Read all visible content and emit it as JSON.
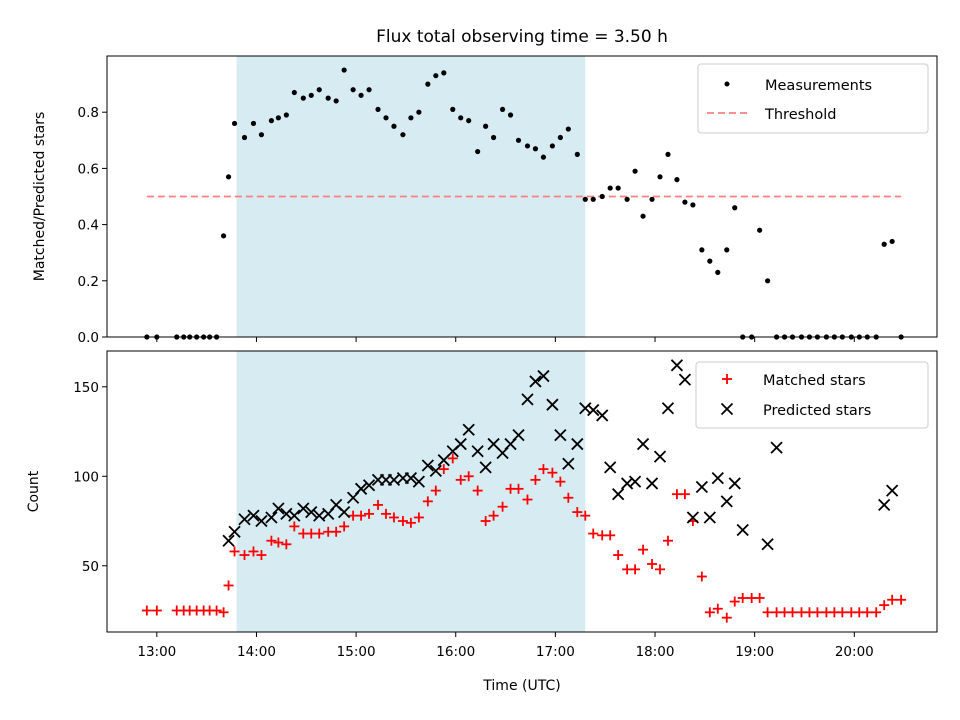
{
  "chart_data": [
    {
      "type": "scatter",
      "title": "Flux total observing time = 3.50 h",
      "xlabel": "",
      "ylabel": "Matched/Predicted stars",
      "x_unit": "hours (UTC)",
      "xlim": [
        12.5,
        20.83
      ],
      "ylim": [
        0,
        1.0
      ],
      "yticks": [
        0.0,
        0.2,
        0.4,
        0.6,
        0.8
      ],
      "ytick_labels": [
        "0.0",
        "0.2",
        "0.4",
        "0.6",
        "0.8"
      ],
      "shaded_region": {
        "x_start": 13.8,
        "x_end": 17.3,
        "color": "#add8e6"
      },
      "legend_position": "upper-right",
      "threshold": {
        "name": "Threshold",
        "value": 0.5,
        "x_start": 12.9,
        "x_end": 20.47,
        "color": "#ff7f7f"
      },
      "series": [
        {
          "name": "Measurements",
          "marker": "dot",
          "color": "#000000",
          "x": [
            12.9,
            13.0,
            13.2,
            13.27,
            13.33,
            13.4,
            13.47,
            13.53,
            13.6,
            13.67,
            13.72,
            13.78,
            13.88,
            13.97,
            14.05,
            14.15,
            14.22,
            14.3,
            14.38,
            14.47,
            14.55,
            14.63,
            14.72,
            14.8,
            14.88,
            14.97,
            15.05,
            15.13,
            15.22,
            15.3,
            15.38,
            15.47,
            15.55,
            15.63,
            15.72,
            15.8,
            15.88,
            15.97,
            16.05,
            16.13,
            16.22,
            16.3,
            16.38,
            16.47,
            16.55,
            16.63,
            16.72,
            16.8,
            16.88,
            16.97,
            17.05,
            17.13,
            17.22,
            17.3,
            17.38,
            17.47,
            17.55,
            17.63,
            17.72,
            17.8,
            17.88,
            17.97,
            18.05,
            18.13,
            18.22,
            18.3,
            18.38,
            18.47,
            18.55,
            18.63,
            18.72,
            18.8,
            18.88,
            18.97,
            19.05,
            19.13,
            19.22,
            19.3,
            19.38,
            19.47,
            19.55,
            19.63,
            19.72,
            19.8,
            19.88,
            19.97,
            20.05,
            20.13,
            20.22,
            20.3,
            20.38,
            20.47
          ],
          "y": [
            0,
            0,
            0,
            0,
            0,
            0,
            0,
            0,
            0,
            0.36,
            0.57,
            0.76,
            0.71,
            0.76,
            0.72,
            0.77,
            0.78,
            0.79,
            0.87,
            0.85,
            0.86,
            0.88,
            0.85,
            0.84,
            0.95,
            0.88,
            0.86,
            0.88,
            0.81,
            0.78,
            0.75,
            0.72,
            0.78,
            0.8,
            0.9,
            0.93,
            0.94,
            0.81,
            0.78,
            0.77,
            0.66,
            0.75,
            0.71,
            0.81,
            0.79,
            0.7,
            0.68,
            0.67,
            0.64,
            0.68,
            0.71,
            0.74,
            0.65,
            0.49,
            0.49,
            0.5,
            0.53,
            0.53,
            0.49,
            0.59,
            0.43,
            0.49,
            0.57,
            0.65,
            0.56,
            0.48,
            0.47,
            0.31,
            0.27,
            0.23,
            0.31,
            0.46,
            0,
            0,
            0.38,
            0.2,
            0,
            0,
            0,
            0,
            0,
            0,
            0,
            0,
            0,
            0,
            0,
            0,
            0,
            0.33,
            0.34,
            0
          ]
        }
      ]
    },
    {
      "type": "scatter",
      "title": "",
      "xlabel": "Time (UTC)",
      "ylabel": "Count",
      "x_unit": "hours (UTC)",
      "xlim": [
        12.5,
        20.83
      ],
      "ylim": [
        13,
        170
      ],
      "xticks": [
        13,
        14,
        15,
        16,
        17,
        18,
        19,
        20
      ],
      "xtick_labels": [
        "13:00",
        "14:00",
        "15:00",
        "16:00",
        "17:00",
        "18:00",
        "19:00",
        "20:00"
      ],
      "yticks": [
        50,
        100,
        150
      ],
      "ytick_labels": [
        "50",
        "100",
        "150"
      ],
      "shaded_region": {
        "x_start": 13.8,
        "x_end": 17.3,
        "color": "#add8e6"
      },
      "legend_position": "upper-right",
      "series": [
        {
          "name": "Matched stars",
          "marker": "plus",
          "color": "#ff0000",
          "x": [
            12.9,
            13.0,
            13.2,
            13.27,
            13.33,
            13.4,
            13.47,
            13.53,
            13.6,
            13.67,
            13.72,
            13.78,
            13.88,
            13.97,
            14.05,
            14.15,
            14.22,
            14.3,
            14.38,
            14.47,
            14.55,
            14.63,
            14.72,
            14.8,
            14.88,
            14.97,
            15.05,
            15.13,
            15.22,
            15.3,
            15.38,
            15.47,
            15.55,
            15.63,
            15.72,
            15.8,
            15.88,
            15.97,
            16.05,
            16.13,
            16.22,
            16.3,
            16.38,
            16.47,
            16.55,
            16.63,
            16.72,
            16.8,
            16.88,
            16.97,
            17.05,
            17.13,
            17.22,
            17.3,
            17.38,
            17.47,
            17.55,
            17.63,
            17.72,
            17.8,
            17.88,
            17.97,
            18.05,
            18.13,
            18.22,
            18.3,
            18.38,
            18.47,
            18.55,
            18.63,
            18.72,
            18.8,
            18.88,
            18.97,
            19.05,
            19.13,
            19.22,
            19.3,
            19.38,
            19.47,
            19.55,
            19.63,
            19.72,
            19.8,
            19.88,
            19.97,
            20.05,
            20.13,
            20.22,
            20.3,
            20.38,
            20.47
          ],
          "y": [
            25,
            25,
            25,
            25,
            25,
            25,
            25,
            25,
            25,
            24,
            39,
            58,
            56,
            58,
            56,
            64,
            63,
            62,
            72,
            68,
            68,
            68,
            69,
            69,
            72,
            78,
            78,
            79,
            84,
            79,
            77,
            75,
            74,
            77,
            86,
            92,
            104,
            110,
            98,
            100,
            92,
            75,
            78,
            83,
            93,
            93,
            87,
            98,
            104,
            102,
            97,
            88,
            80,
            78,
            68,
            67,
            67,
            56,
            48,
            48,
            59,
            51,
            48,
            64,
            90,
            90,
            75,
            44,
            24,
            26,
            21,
            30,
            32,
            32,
            32,
            24,
            24,
            24,
            24,
            24,
            24,
            24,
            24,
            24,
            24,
            24,
            24,
            24,
            24,
            28,
            31,
            31
          ]
        },
        {
          "name": "Predicted stars",
          "marker": "x",
          "color": "#000000",
          "x": [
            13.72,
            13.78,
            13.88,
            13.97,
            14.05,
            14.15,
            14.22,
            14.3,
            14.38,
            14.47,
            14.55,
            14.63,
            14.72,
            14.8,
            14.88,
            14.97,
            15.05,
            15.13,
            15.22,
            15.3,
            15.38,
            15.47,
            15.55,
            15.63,
            15.72,
            15.8,
            15.88,
            15.97,
            16.05,
            16.13,
            16.22,
            16.3,
            16.38,
            16.47,
            16.55,
            16.63,
            16.72,
            16.8,
            16.88,
            16.97,
            17.05,
            17.13,
            17.22,
            17.3,
            17.38,
            17.47,
            17.55,
            17.63,
            17.72,
            17.8,
            17.88,
            17.97,
            18.05,
            18.13,
            18.22,
            18.3,
            18.38,
            18.47,
            18.55,
            18.63,
            18.72,
            18.8,
            18.88,
            19.13,
            19.22,
            20.3,
            20.38
          ],
          "y": [
            64,
            69,
            76,
            78,
            75,
            77,
            82,
            79,
            78,
            82,
            80,
            78,
            79,
            84,
            80,
            88,
            93,
            95,
            98,
            98,
            98,
            99,
            99,
            97,
            106,
            103,
            109,
            114,
            118,
            126,
            114,
            105,
            118,
            113,
            118,
            123,
            143,
            153,
            156,
            140,
            123,
            107,
            118,
            138,
            137,
            134,
            105,
            90,
            96,
            97,
            118,
            96,
            111,
            138,
            162,
            154,
            77,
            94,
            77,
            99,
            86,
            96,
            70,
            62,
            116,
            84,
            92
          ]
        }
      ]
    }
  ]
}
